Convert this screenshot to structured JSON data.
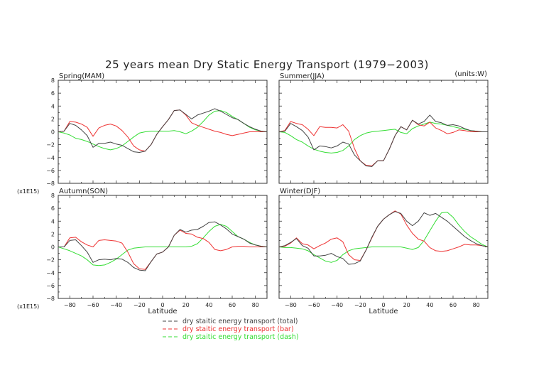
{
  "chart_data": {
    "type": "line",
    "title": "25 years mean Dry Static Energy Transport (1979−2003)",
    "units_note": "(units:W)",
    "scale_note": "(x1E15)",
    "xlabel": "Latitude",
    "x": [
      -90,
      -85,
      -80,
      -75,
      -70,
      -65,
      -60,
      -55,
      -50,
      -45,
      -40,
      -35,
      -30,
      -25,
      -20,
      -15,
      -10,
      -5,
      0,
      5,
      10,
      15,
      20,
      25,
      30,
      35,
      40,
      45,
      50,
      55,
      60,
      65,
      70,
      75,
      80,
      85,
      90
    ],
    "xlim": [
      -90,
      90
    ],
    "xticks": [
      "-80",
      "-60",
      "-40",
      "-20",
      "0",
      "20",
      "40",
      "60",
      "80"
    ],
    "xtick_values": [
      -80,
      -60,
      -40,
      -20,
      0,
      20,
      40,
      60,
      80
    ],
    "ylim": [
      -8,
      8
    ],
    "yticks": [
      "8",
      "6",
      "4",
      "2",
      "0",
      "-2",
      "-4",
      "-6",
      "-8"
    ],
    "ytick_values": [
      8,
      6,
      4,
      2,
      0,
      -2,
      -4,
      -6,
      -8
    ],
    "legend": {
      "placement": "bottom-center",
      "entries": [
        {
          "name": "dry staitic energy transport (total)",
          "color": "#444444",
          "dash": "---"
        },
        {
          "name": "dry staitic energy transport (bar)",
          "color": "#ee3333",
          "dash": "---"
        },
        {
          "name": "dry staitic energy transport (dash)",
          "color": "#33dd33",
          "dash": "---"
        }
      ]
    },
    "panels": [
      {
        "name": "Spring(MAM)",
        "series": [
          {
            "name": "total",
            "color": "#444444",
            "values": [
              0,
              0.1,
              1.3,
              1.0,
              0.3,
              -0.6,
              -2.4,
              -1.8,
              -1.8,
              -1.6,
              -1.9,
              -2.1,
              -2.6,
              -3.1,
              -3.2,
              -3.0,
              -2.0,
              -0.4,
              0.8,
              1.9,
              3.3,
              3.4,
              2.7,
              2.0,
              2.6,
              2.9,
              3.2,
              3.6,
              3.2,
              2.7,
              2.2,
              1.9,
              1.3,
              0.8,
              0.4,
              0.1,
              0
            ]
          },
          {
            "name": "bar",
            "color": "#ee3333",
            "values": [
              0,
              0.1,
              1.6,
              1.5,
              1.2,
              0.7,
              -0.7,
              0.6,
              1.0,
              1.2,
              0.9,
              0.2,
              -0.8,
              -2.2,
              -2.8,
              -3.0,
              -2.0,
              -0.4,
              0.8,
              1.9,
              3.3,
              3.4,
              2.6,
              1.4,
              1.0,
              0.7,
              0.4,
              0.1,
              -0.1,
              -0.4,
              -0.6,
              -0.4,
              -0.2,
              0,
              0,
              0,
              0
            ]
          },
          {
            "name": "dash",
            "color": "#33dd33",
            "values": [
              0,
              -0.2,
              -0.5,
              -1.0,
              -1.2,
              -1.5,
              -1.9,
              -2.3,
              -2.6,
              -2.8,
              -2.6,
              -2.2,
              -1.5,
              -0.8,
              -0.2,
              0,
              0.1,
              0.1,
              0.1,
              0.1,
              0.2,
              0,
              -0.3,
              0.1,
              0.7,
              1.6,
              2.6,
              3.2,
              3.3,
              3.0,
              2.4,
              1.9,
              1.3,
              0.7,
              0.3,
              0.1,
              0
            ]
          }
        ]
      },
      {
        "name": "Summer(JJA)",
        "series": [
          {
            "name": "total",
            "color": "#444444",
            "values": [
              0,
              0.1,
              1.3,
              0.8,
              0.2,
              -0.8,
              -2.8,
              -2.2,
              -2.3,
              -2.5,
              -2.2,
              -1.6,
              -1.9,
              -3.6,
              -4.5,
              -5.3,
              -5.4,
              -4.5,
              -4.5,
              -2.7,
              -0.6,
              0.8,
              0.3,
              1.8,
              1.2,
              1.6,
              2.6,
              1.6,
              1.4,
              1.0,
              1.1,
              0.9,
              0.5,
              0.2,
              0.1,
              0,
              0
            ]
          },
          {
            "name": "bar",
            "color": "#ee3333",
            "values": [
              0,
              0.2,
              1.6,
              1.3,
              1.1,
              0.4,
              -0.6,
              0.8,
              0.7,
              0.7,
              0.6,
              1.1,
              0.1,
              -2.6,
              -4.5,
              -5.2,
              -5.3,
              -4.5,
              -4.5,
              -2.7,
              -0.6,
              0.8,
              0.3,
              1.8,
              1.1,
              0.9,
              1.5,
              0.6,
              0.2,
              -0.3,
              -0.1,
              0.3,
              0.2,
              0,
              0,
              0,
              0
            ]
          },
          {
            "name": "dash",
            "color": "#33dd33",
            "values": [
              0,
              -0.1,
              -0.6,
              -1.2,
              -1.6,
              -2.2,
              -2.7,
              -3.0,
              -3.2,
              -3.3,
              -3.2,
              -2.9,
              -2.2,
              -1.2,
              -0.6,
              -0.2,
              0,
              0.1,
              0.2,
              0.3,
              0.4,
              -0.1,
              -0.3,
              0.5,
              0.9,
              1.2,
              1.5,
              1.3,
              1.2,
              1.0,
              0.8,
              0.6,
              0.4,
              0.2,
              0.1,
              0,
              0
            ]
          }
        ]
      },
      {
        "name": "Autumn(SON)",
        "series": [
          {
            "name": "total",
            "color": "#444444",
            "values": [
              0,
              0,
              1.0,
              1.1,
              0.2,
              -0.8,
              -2.4,
              -2.0,
              -1.9,
              -2.0,
              -1.8,
              -1.9,
              -2.4,
              -3.2,
              -3.6,
              -3.7,
              -2.3,
              -1.1,
              -0.8,
              0.0,
              1.8,
              2.7,
              2.3,
              2.6,
              2.7,
              3.2,
              3.8,
              3.9,
              3.4,
              2.8,
              2.0,
              1.6,
              1.2,
              0.6,
              0.3,
              0.1,
              0
            ]
          },
          {
            "name": "bar",
            "color": "#ee3333",
            "values": [
              0,
              0,
              1.4,
              1.5,
              0.8,
              0.3,
              0,
              1.0,
              1.1,
              1.0,
              0.9,
              0.6,
              -0.8,
              -2.6,
              -3.4,
              -3.5,
              -2.3,
              -1.1,
              -0.8,
              0.0,
              1.8,
              2.6,
              2.1,
              2.0,
              1.5,
              1.3,
              0.7,
              -0.4,
              -0.6,
              -0.4,
              0,
              0.1,
              0.1,
              0,
              0,
              0,
              0
            ]
          },
          {
            "name": "dash",
            "color": "#33dd33",
            "values": [
              0,
              -0.3,
              -0.6,
              -1.0,
              -1.4,
              -2.0,
              -2.8,
              -2.9,
              -2.8,
              -2.4,
              -1.9,
              -1.2,
              -0.5,
              -0.2,
              -0.1,
              0,
              0,
              0,
              0,
              0,
              0,
              0,
              0,
              0.1,
              0.5,
              1.4,
              2.4,
              3.2,
              3.5,
              3.2,
              2.4,
              1.6,
              1.2,
              0.7,
              0.3,
              0.1,
              0
            ]
          }
        ]
      },
      {
        "name": "Winter(DJF)",
        "series": [
          {
            "name": "total",
            "color": "#444444",
            "values": [
              0,
              0.2,
              0.7,
              1.3,
              0.2,
              -0.2,
              -1.4,
              -1.4,
              -1.3,
              -1.0,
              -1.5,
              -1.8,
              -2.7,
              -2.6,
              -2.2,
              -0.5,
              1.5,
              3.2,
              4.3,
              5.0,
              5.5,
              5.2,
              4.0,
              3.3,
              4.0,
              5.3,
              4.9,
              5.2,
              4.6,
              4.0,
              3.2,
              2.4,
              1.6,
              1.0,
              0.5,
              0.2,
              0
            ]
          },
          {
            "name": "bar",
            "color": "#ee3333",
            "values": [
              0,
              0.1,
              0.6,
              1.4,
              0.5,
              0.3,
              -0.3,
              0.2,
              0.6,
              1.2,
              1.4,
              0.8,
              -1.2,
              -2.0,
              -2.1,
              -0.5,
              1.4,
              3.2,
              4.3,
              5.0,
              5.6,
              5.1,
              3.4,
              2.1,
              1.2,
              0.9,
              -0.1,
              -0.6,
              -0.7,
              -0.6,
              -0.3,
              0,
              0.4,
              0.3,
              0.3,
              0.2,
              0
            ]
          },
          {
            "name": "dash",
            "color": "#33dd33",
            "values": [
              0,
              -0.1,
              -0.1,
              -0.2,
              -0.3,
              -0.6,
              -1.2,
              -1.7,
              -2.2,
              -2.4,
              -2.1,
              -1.2,
              -0.6,
              -0.3,
              -0.2,
              -0.1,
              0,
              0,
              0,
              0,
              0,
              0,
              -0.2,
              -0.4,
              -0.1,
              1.0,
              2.5,
              4.0,
              5.3,
              5.4,
              4.6,
              3.4,
              2.4,
              1.6,
              1.0,
              0.4,
              0
            ]
          }
        ]
      }
    ]
  }
}
